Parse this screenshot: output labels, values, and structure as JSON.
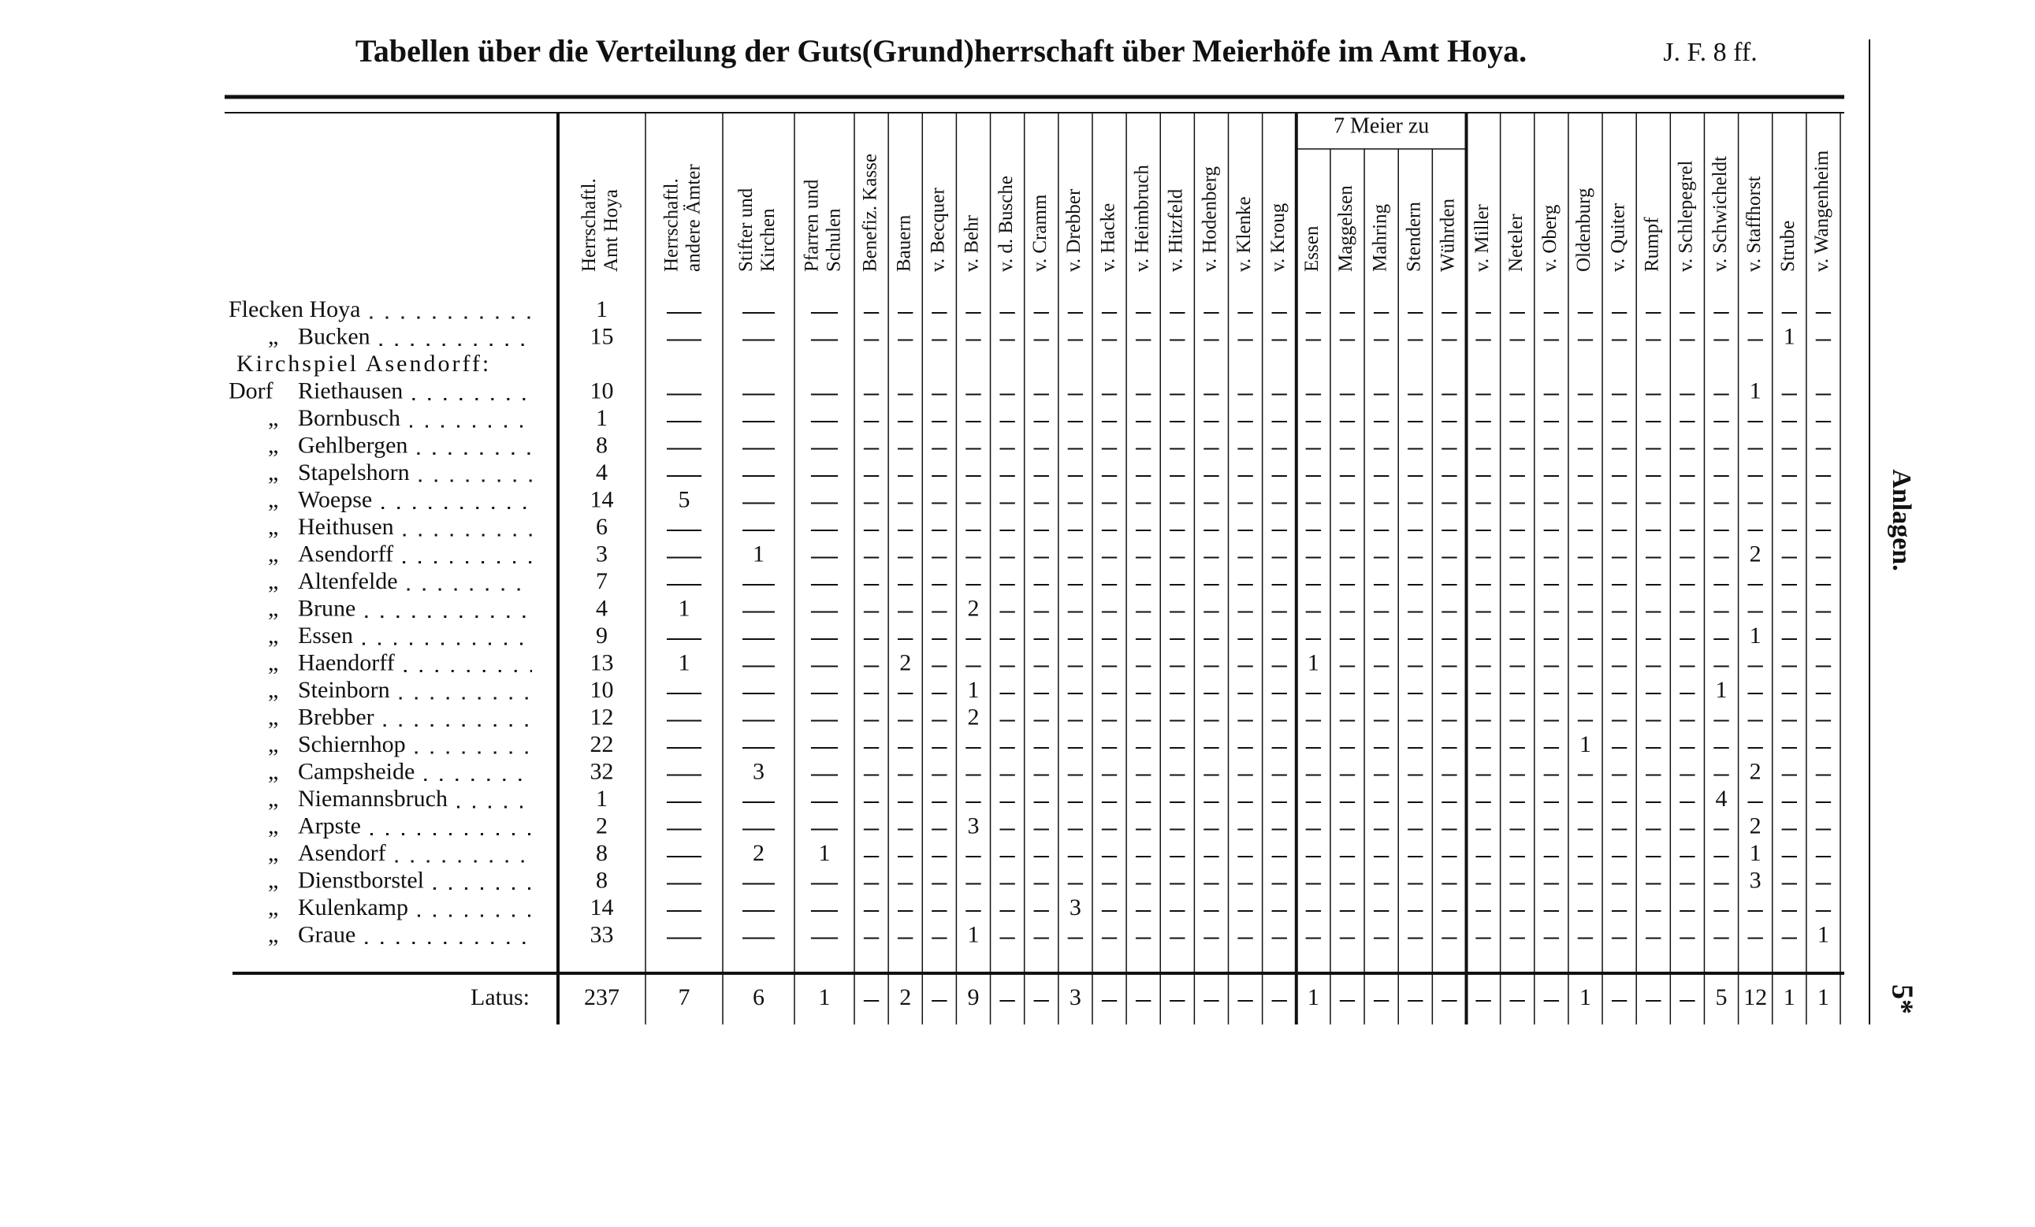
{
  "header": {
    "title": "Tabellen über die Verteilung der Guts(Grund)herrschaft über Meierhöfe im Amt Hoya.",
    "reference": "J. F. 8 ff."
  },
  "side": {
    "label": "Anlagen.",
    "page": "5*"
  },
  "group": {
    "label": "7 Meier zu",
    "first": 17,
    "last": 21
  },
  "columns": [
    {
      "lines": [
        "Herrschaftl.",
        "Amt Hoya"
      ]
    },
    {
      "lines": [
        "Herrschaftl.",
        "andere Ämter"
      ]
    },
    {
      "lines": [
        "Stifter und",
        "Kirchen"
      ]
    },
    {
      "lines": [
        "Pfarren und",
        "Schulen"
      ]
    },
    {
      "lines": [
        "Benefiz. Kasse"
      ]
    },
    {
      "lines": [
        "Bauern"
      ]
    },
    {
      "lines": [
        "v. Becquer"
      ]
    },
    {
      "lines": [
        "v. Behr"
      ]
    },
    {
      "lines": [
        "v. d. Busche"
      ]
    },
    {
      "lines": [
        "v. Cramm"
      ]
    },
    {
      "lines": [
        "v. Drebber"
      ]
    },
    {
      "lines": [
        "v. Hacke"
      ]
    },
    {
      "lines": [
        "v. Heimbruch"
      ]
    },
    {
      "lines": [
        "v. Hitzfeld"
      ]
    },
    {
      "lines": [
        "v. Hodenberg"
      ]
    },
    {
      "lines": [
        "v. Klenke"
      ]
    },
    {
      "lines": [
        "v. Kroug"
      ]
    },
    {
      "lines": [
        "Essen"
      ]
    },
    {
      "lines": [
        "Maggelsen"
      ]
    },
    {
      "lines": [
        "Mahring"
      ]
    },
    {
      "lines": [
        "Stendern"
      ]
    },
    {
      "lines": [
        "Wührden"
      ]
    },
    {
      "lines": [
        "v. Miller"
      ]
    },
    {
      "lines": [
        "Neteler"
      ]
    },
    {
      "lines": [
        "v. Oberg"
      ]
    },
    {
      "lines": [
        "Oldenburg"
      ]
    },
    {
      "lines": [
        "v. Quiter"
      ]
    },
    {
      "lines": [
        "Rumpf"
      ]
    },
    {
      "lines": [
        "v. Schlepegrel"
      ]
    },
    {
      "lines": [
        "v. Schwicheldt"
      ]
    },
    {
      "lines": [
        "v. Staffhorst"
      ]
    },
    {
      "lines": [
        "Strube"
      ]
    },
    {
      "lines": [
        "v. Wangenheim"
      ]
    }
  ],
  "rows": [
    {
      "name": "Flecken Hoya",
      "values": [
        1,
        null,
        null,
        null,
        null,
        null,
        null,
        null,
        null,
        null,
        null,
        null,
        null,
        null,
        null,
        null,
        null,
        null,
        null,
        null,
        null,
        null,
        null,
        null,
        null,
        null,
        null,
        null,
        null,
        null,
        null,
        null,
        null
      ]
    },
    {
      "prefix": "„",
      "name": "Bucken",
      "values": [
        15,
        null,
        null,
        null,
        null,
        null,
        null,
        null,
        null,
        null,
        null,
        null,
        null,
        null,
        null,
        null,
        null,
        null,
        null,
        null,
        null,
        null,
        null,
        null,
        null,
        null,
        null,
        null,
        null,
        null,
        null,
        1,
        null
      ]
    },
    {
      "name": "Kirchspiel Asendorff:"
    },
    {
      "prefix": "Dorf",
      "name": "Riethausen",
      "values": [
        10,
        null,
        null,
        null,
        null,
        null,
        null,
        null,
        null,
        null,
        null,
        null,
        null,
        null,
        null,
        null,
        null,
        null,
        null,
        null,
        null,
        null,
        null,
        null,
        null,
        null,
        null,
        null,
        null,
        null,
        1,
        null,
        null
      ]
    },
    {
      "prefix": "„",
      "name": "Bornbusch",
      "values": [
        1,
        null,
        null,
        null,
        null,
        null,
        null,
        null,
        null,
        null,
        null,
        null,
        null,
        null,
        null,
        null,
        null,
        null,
        null,
        null,
        null,
        null,
        null,
        null,
        null,
        null,
        null,
        null,
        null,
        null,
        null,
        null,
        null
      ]
    },
    {
      "prefix": "„",
      "name": "Gehlbergen",
      "values": [
        8,
        null,
        null,
        null,
        null,
        null,
        null,
        null,
        null,
        null,
        null,
        null,
        null,
        null,
        null,
        null,
        null,
        null,
        null,
        null,
        null,
        null,
        null,
        null,
        null,
        null,
        null,
        null,
        null,
        null,
        null,
        null,
        null
      ]
    },
    {
      "prefix": "„",
      "name": "Stapelshorn",
      "values": [
        4,
        null,
        null,
        null,
        null,
        null,
        null,
        null,
        null,
        null,
        null,
        null,
        null,
        null,
        null,
        null,
        null,
        null,
        null,
        null,
        null,
        null,
        null,
        null,
        null,
        null,
        null,
        null,
        null,
        null,
        null,
        null,
        null
      ]
    },
    {
      "prefix": "„",
      "name": "Woepse",
      "values": [
        14,
        5,
        null,
        null,
        null,
        null,
        null,
        null,
        null,
        null,
        null,
        null,
        null,
        null,
        null,
        null,
        null,
        null,
        null,
        null,
        null,
        null,
        null,
        null,
        null,
        null,
        null,
        null,
        null,
        null,
        null,
        null,
        null
      ]
    },
    {
      "prefix": "„",
      "name": "Heithusen",
      "values": [
        6,
        null,
        null,
        null,
        null,
        null,
        null,
        null,
        null,
        null,
        null,
        null,
        null,
        null,
        null,
        null,
        null,
        null,
        null,
        null,
        null,
        null,
        null,
        null,
        null,
        null,
        null,
        null,
        null,
        null,
        null,
        null,
        null
      ]
    },
    {
      "prefix": "„",
      "name": "Asendorff",
      "values": [
        3,
        null,
        1,
        null,
        null,
        null,
        null,
        null,
        null,
        null,
        null,
        null,
        null,
        null,
        null,
        null,
        null,
        null,
        null,
        null,
        null,
        null,
        null,
        null,
        null,
        null,
        null,
        null,
        null,
        null,
        2,
        null,
        null
      ]
    },
    {
      "prefix": "„",
      "name": "Altenfelde",
      "values": [
        7,
        null,
        null,
        null,
        null,
        null,
        null,
        null,
        null,
        null,
        null,
        null,
        null,
        null,
        null,
        null,
        null,
        null,
        null,
        null,
        null,
        null,
        null,
        null,
        null,
        null,
        null,
        null,
        null,
        null,
        null,
        null,
        null
      ]
    },
    {
      "prefix": "„",
      "name": "Brune",
      "values": [
        4,
        1,
        null,
        null,
        null,
        null,
        null,
        2,
        null,
        null,
        null,
        null,
        null,
        null,
        null,
        null,
        null,
        null,
        null,
        null,
        null,
        null,
        null,
        null,
        null,
        null,
        null,
        null,
        null,
        null,
        null,
        null,
        null
      ]
    },
    {
      "prefix": "„",
      "name": "Essen",
      "values": [
        9,
        null,
        null,
        null,
        null,
        null,
        null,
        null,
        null,
        null,
        null,
        null,
        null,
        null,
        null,
        null,
        null,
        null,
        null,
        null,
        null,
        null,
        null,
        null,
        null,
        null,
        null,
        null,
        null,
        null,
        1,
        null,
        null
      ]
    },
    {
      "prefix": "„",
      "name": "Haendorff",
      "values": [
        13,
        1,
        null,
        null,
        null,
        2,
        null,
        null,
        null,
        null,
        null,
        null,
        null,
        null,
        null,
        null,
        null,
        1,
        null,
        null,
        null,
        null,
        null,
        null,
        null,
        null,
        null,
        null,
        null,
        null,
        null,
        null,
        null
      ]
    },
    {
      "prefix": "„",
      "name": "Steinborn",
      "values": [
        10,
        null,
        null,
        null,
        null,
        null,
        null,
        1,
        null,
        null,
        null,
        null,
        null,
        null,
        null,
        null,
        null,
        null,
        null,
        null,
        null,
        null,
        null,
        null,
        null,
        null,
        null,
        null,
        null,
        1,
        null,
        null,
        null
      ]
    },
    {
      "prefix": "„",
      "name": "Brebber",
      "values": [
        12,
        null,
        null,
        null,
        null,
        null,
        null,
        2,
        null,
        null,
        null,
        null,
        null,
        null,
        null,
        null,
        null,
        null,
        null,
        null,
        null,
        null,
        null,
        null,
        null,
        null,
        null,
        null,
        null,
        null,
        null,
        null,
        null
      ]
    },
    {
      "prefix": "„",
      "name": "Schiernhop",
      "values": [
        22,
        null,
        null,
        null,
        null,
        null,
        null,
        null,
        null,
        null,
        null,
        null,
        null,
        null,
        null,
        null,
        null,
        null,
        null,
        null,
        null,
        null,
        null,
        null,
        null,
        1,
        null,
        null,
        null,
        null,
        null,
        null,
        null
      ]
    },
    {
      "prefix": "„",
      "name": "Campsheide",
      "values": [
        32,
        null,
        3,
        null,
        null,
        null,
        null,
        null,
        null,
        null,
        null,
        null,
        null,
        null,
        null,
        null,
        null,
        null,
        null,
        null,
        null,
        null,
        null,
        null,
        null,
        null,
        null,
        null,
        null,
        null,
        2,
        null,
        null
      ]
    },
    {
      "prefix": "„",
      "name": "Niemannsbruch",
      "values": [
        1,
        null,
        null,
        null,
        null,
        null,
        null,
        null,
        null,
        null,
        null,
        null,
        null,
        null,
        null,
        null,
        null,
        null,
        null,
        null,
        null,
        null,
        null,
        null,
        null,
        null,
        null,
        null,
        null,
        4,
        null,
        null,
        null
      ]
    },
    {
      "prefix": "„",
      "name": "Arpste",
      "values": [
        2,
        null,
        null,
        null,
        null,
        null,
        null,
        3,
        null,
        null,
        null,
        null,
        null,
        null,
        null,
        null,
        null,
        null,
        null,
        null,
        null,
        null,
        null,
        null,
        null,
        null,
        null,
        null,
        null,
        null,
        2,
        null,
        null
      ]
    },
    {
      "prefix": "„",
      "name": "Asendorf",
      "values": [
        8,
        null,
        2,
        1,
        null,
        null,
        null,
        null,
        null,
        null,
        null,
        null,
        null,
        null,
        null,
        null,
        null,
        null,
        null,
        null,
        null,
        null,
        null,
        null,
        null,
        null,
        null,
        null,
        null,
        null,
        1,
        null,
        null
      ]
    },
    {
      "prefix": "„",
      "name": "Dienstborstel",
      "values": [
        8,
        null,
        null,
        null,
        null,
        null,
        null,
        null,
        null,
        null,
        null,
        null,
        null,
        null,
        null,
        null,
        null,
        null,
        null,
        null,
        null,
        null,
        null,
        null,
        null,
        null,
        null,
        null,
        null,
        null,
        3,
        null,
        null
      ]
    },
    {
      "prefix": "„",
      "name": "Kulenkamp",
      "values": [
        14,
        null,
        null,
        null,
        null,
        null,
        null,
        null,
        null,
        null,
        3,
        null,
        null,
        null,
        null,
        null,
        null,
        null,
        null,
        null,
        null,
        null,
        null,
        null,
        null,
        null,
        null,
        null,
        null,
        null,
        null,
        null,
        null
      ]
    },
    {
      "prefix": "„",
      "name": "Graue",
      "values": [
        33,
        null,
        null,
        null,
        null,
        null,
        null,
        1,
        null,
        null,
        null,
        null,
        null,
        null,
        null,
        null,
        null,
        null,
        null,
        null,
        null,
        null,
        null,
        null,
        null,
        null,
        null,
        null,
        null,
        null,
        null,
        null,
        1
      ]
    }
  ],
  "total": {
    "label": "Latus:",
    "values": [
      237,
      7,
      6,
      1,
      null,
      2,
      null,
      9,
      null,
      null,
      3,
      null,
      null,
      null,
      null,
      null,
      null,
      1,
      null,
      null,
      null,
      null,
      null,
      null,
      null,
      1,
      null,
      null,
      null,
      5,
      12,
      1,
      1
    ]
  }
}
